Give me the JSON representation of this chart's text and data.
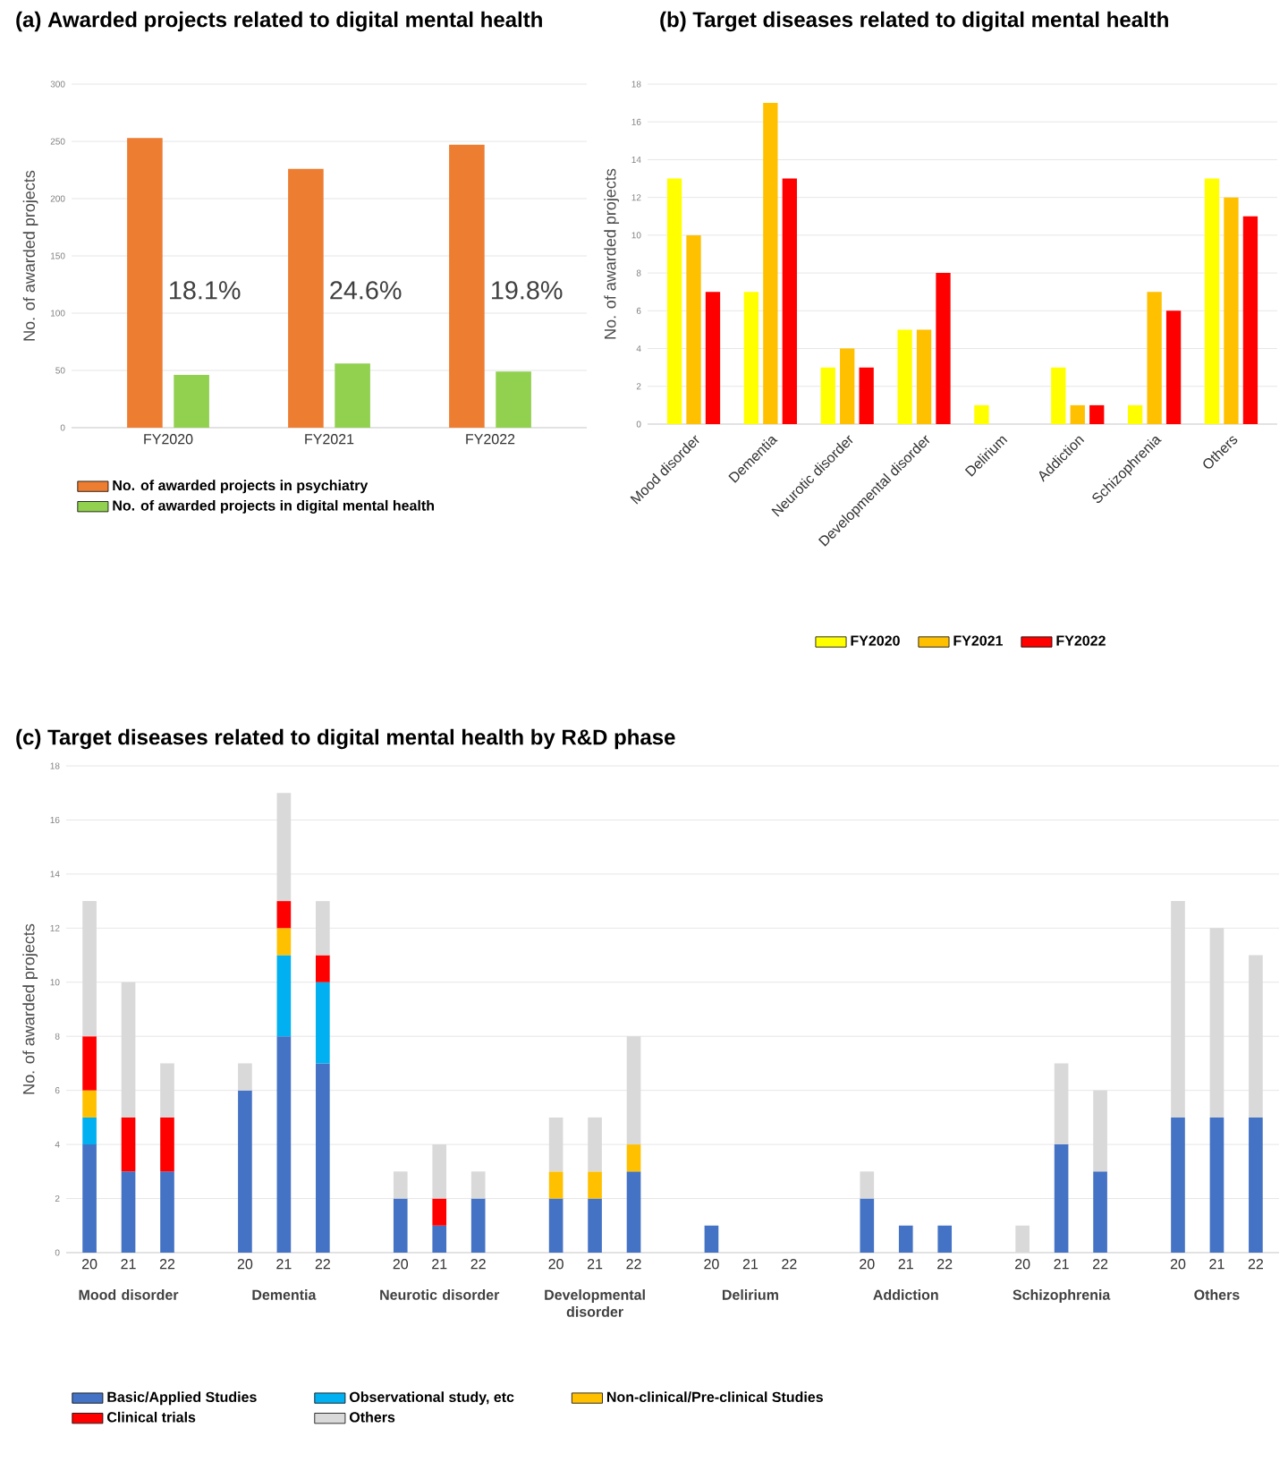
{
  "chart_data": [
    {
      "type": "bar",
      "title": "(a) Awarded projects related to digital mental health",
      "ylabel": "No. of awarded projects",
      "categories": [
        "FY2020",
        "FY2021",
        "FY2022"
      ],
      "series": [
        {
          "name": "No. of awarded projects in psychiatry",
          "color": "#ed7d31",
          "values": [
            253,
            226,
            247
          ]
        },
        {
          "name": "No. of awarded projects in digital mental health",
          "color": "#92d050",
          "values": [
            46,
            56,
            49
          ]
        }
      ],
      "ylim": [
        0,
        300
      ],
      "yticks": [
        0,
        50,
        100,
        150,
        200,
        250,
        300
      ],
      "grid": "y",
      "legend": "bottom",
      "annotations": [
        {
          "text": "18.1%",
          "x": "FY2020",
          "y": 120
        },
        {
          "text": "24.6%",
          "x": "FY2021",
          "y": 120
        },
        {
          "text": "19.8%",
          "x": "FY2022",
          "y": 120
        }
      ]
    },
    {
      "type": "bar",
      "title": "(b) Target diseases related to digital mental health",
      "ylabel": "No. of awarded projects",
      "categories": [
        "Mood disorder",
        "Dementia",
        "Neurotic disorder",
        "Developmental disorder",
        "Delirium",
        "Addiction",
        "Schizophrenia",
        "Others"
      ],
      "series": [
        {
          "name": "FY2020",
          "color": "#ffff00",
          "values": [
            13,
            7,
            3,
            5,
            1,
            3,
            1,
            13
          ]
        },
        {
          "name": "FY2021",
          "color": "#ffc000",
          "values": [
            10,
            17,
            4,
            5,
            0,
            1,
            7,
            12
          ]
        },
        {
          "name": "FY2022",
          "color": "#ff0000",
          "values": [
            7,
            13,
            3,
            8,
            0,
            1,
            6,
            11
          ]
        }
      ],
      "ylim": [
        0,
        18
      ],
      "yticks": [
        0,
        2,
        4,
        6,
        8,
        10,
        12,
        14,
        16,
        18
      ],
      "grid": "y",
      "legend": "bottom"
    },
    {
      "type": "bar",
      "stacked": true,
      "title": "(c) Target diseases related to digital mental health by R&D phase",
      "ylabel": "No. of awarded projects",
      "categories": [
        "20",
        "21",
        "22",
        null,
        "20",
        "21",
        "22",
        null,
        "20",
        "21",
        "22",
        null,
        "20",
        "21",
        "22",
        null,
        "20",
        "21",
        "22",
        null,
        "20",
        "21",
        "22",
        null,
        "20",
        "21",
        "22",
        null,
        "20",
        "21",
        "22"
      ],
      "series": [
        {
          "name": "Basic/Applied Studies",
          "color": "#4472c4",
          "values": [
            4,
            3,
            3,
            null,
            6,
            8,
            7,
            null,
            2,
            1,
            2,
            null,
            2,
            2,
            3,
            null,
            1,
            null,
            null,
            null,
            2,
            1,
            1,
            null,
            null,
            4,
            3,
            null,
            5,
            5,
            5
          ]
        },
        {
          "name": "Observational study, etc",
          "color": "#00b0f0",
          "values": [
            1,
            null,
            null,
            null,
            null,
            3,
            3,
            null,
            null,
            null,
            null,
            null,
            null,
            null,
            null,
            null,
            null,
            null,
            null,
            null,
            null,
            null,
            null,
            null,
            null,
            null,
            null,
            null,
            null,
            null,
            null
          ]
        },
        {
          "name": "Non-clinical/Pre-clinical Studies",
          "color": "#ffc000",
          "values": [
            1,
            null,
            null,
            null,
            null,
            1,
            null,
            null,
            null,
            null,
            null,
            null,
            1,
            1,
            1,
            null,
            null,
            null,
            null,
            null,
            null,
            null,
            null,
            null,
            null,
            null,
            null,
            null,
            null,
            null,
            null
          ]
        },
        {
          "name": "Clinical trials",
          "color": "#ff0000",
          "values": [
            2,
            2,
            2,
            null,
            null,
            1,
            1,
            null,
            null,
            1,
            null,
            null,
            null,
            null,
            null,
            null,
            null,
            null,
            null,
            null,
            null,
            null,
            null,
            null,
            null,
            null,
            null,
            null,
            null,
            null,
            null
          ]
        },
        {
          "name": "Others",
          "color": "#d9d9d9",
          "values": [
            5,
            5,
            2,
            null,
            1,
            4,
            2,
            null,
            1,
            2,
            1,
            null,
            2,
            2,
            4,
            null,
            null,
            null,
            null,
            null,
            1,
            null,
            null,
            null,
            1,
            3,
            3,
            null,
            8,
            7,
            6
          ]
        }
      ],
      "ylim": [
        0,
        18
      ],
      "yticks": [
        0,
        2,
        4,
        6,
        8,
        10,
        12,
        14,
        16,
        18
      ],
      "grid": "y",
      "legend": "bottom",
      "annotations": [
        "Mood disorder",
        "Dementia",
        "Neurotic disorder",
        "Developmental disorder",
        "Delirium",
        "Addiction",
        "Schizophrenia",
        "Others"
      ]
    }
  ]
}
